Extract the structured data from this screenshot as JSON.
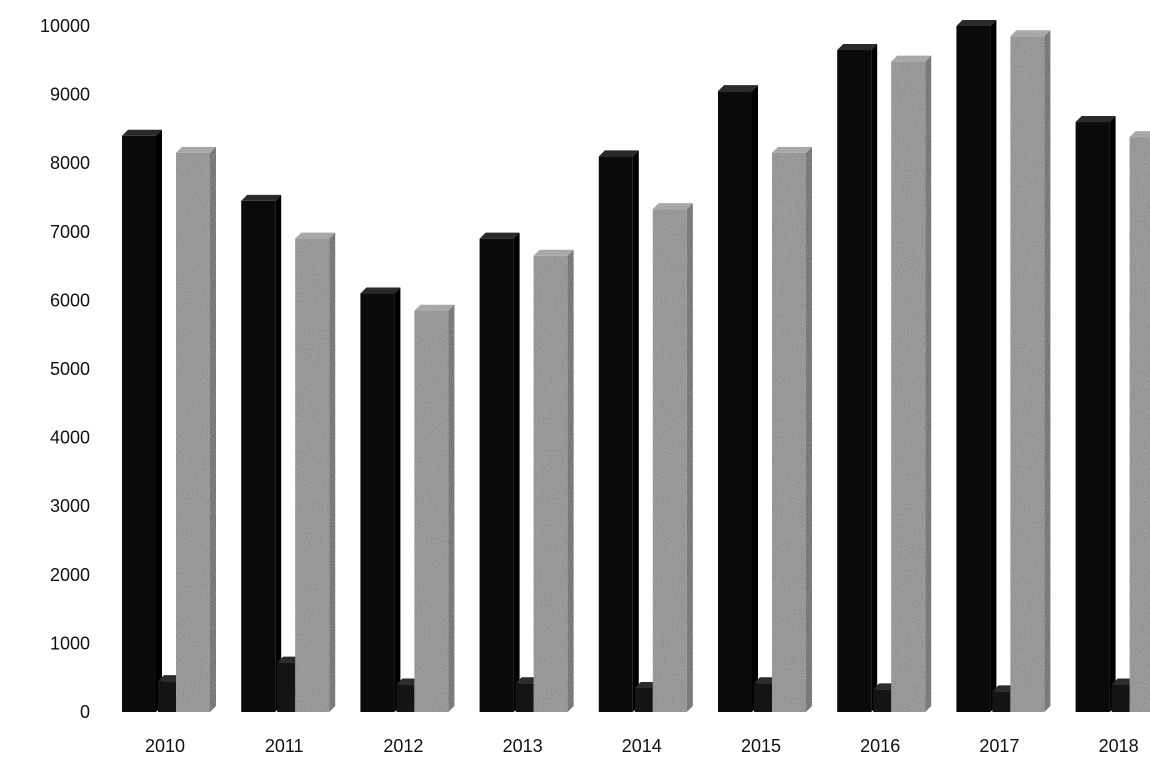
{
  "chart_data": {
    "type": "bar",
    "categories": [
      "2010",
      "2011",
      "2012",
      "2013",
      "2014",
      "2015",
      "2016",
      "2017",
      "2018"
    ],
    "series": [
      {
        "values": [
          8400,
          7450,
          6100,
          6900,
          8100,
          9050,
          9650,
          10000,
          8600
        ]
      },
      {
        "values": [
          450,
          720,
          400,
          420,
          350,
          420,
          330,
          300,
          400
        ]
      },
      {
        "values": [
          8150,
          6900,
          5850,
          6650,
          7330,
          8150,
          9480,
          9850,
          8380
        ]
      }
    ],
    "yticks": [
      "0",
      "1000",
      "2000",
      "3000",
      "4000",
      "5000",
      "6000",
      "7000",
      "8000",
      "9000",
      "10000"
    ],
    "ylim": [
      0,
      10000
    ],
    "title": "",
    "xlabel": "",
    "ylabel": "",
    "grid": false,
    "legend": "none",
    "colors": [
      "#0a0a0a",
      "#141414",
      "#8c8c8c"
    ]
  }
}
